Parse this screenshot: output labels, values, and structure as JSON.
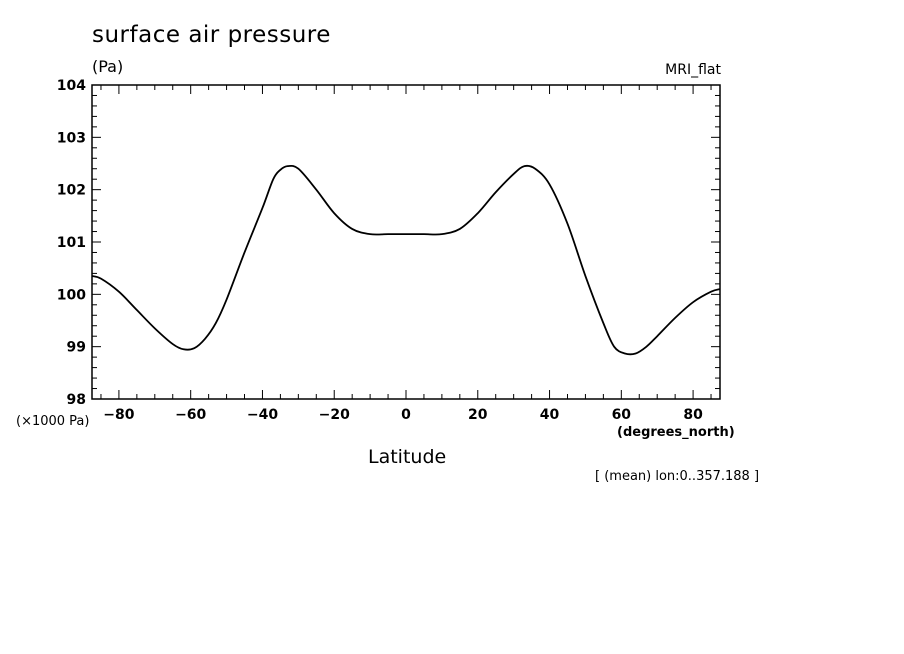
{
  "chart_data": {
    "type": "line",
    "title": "surface air pressure",
    "ylabel": "(Pa)",
    "y_multiplier_label": "(×1000 Pa)",
    "xlabel": "Latitude",
    "x_units_label": "(degrees_north)",
    "model_label": "MRI_flat",
    "note": "[ (mean) lon:0..357.188 ]",
    "xlim": [
      -87.5,
      87.5
    ],
    "ylim": [
      98,
      104
    ],
    "x_ticks": [
      -80,
      -60,
      -40,
      -20,
      0,
      20,
      40,
      60,
      80
    ],
    "x_tick_labels": [
      "−80",
      "−60",
      "−40",
      "−20",
      "0",
      "20",
      "40",
      "60",
      "80"
    ],
    "y_ticks": [
      98,
      99,
      100,
      101,
      102,
      103,
      104
    ],
    "y_tick_labels": [
      "98",
      "99",
      "100",
      "101",
      "102",
      "103",
      "104"
    ],
    "grid": false,
    "series": [
      {
        "color": "#000000",
        "x": [
          -87.5,
          -85,
          -80,
          -75,
          -70,
          -65,
          -62,
          -59,
          -56,
          -53,
          -50,
          -45,
          -40,
          -37,
          -35,
          -33,
          -30,
          -25,
          -20,
          -15,
          -10,
          -5,
          0,
          5,
          10,
          15,
          20,
          25,
          30,
          33,
          36,
          40,
          45,
          50,
          55,
          58,
          61,
          64,
          67,
          70,
          75,
          80,
          85,
          87.5
        ],
        "y": [
          100.35,
          100.3,
          100.05,
          99.7,
          99.35,
          99.05,
          98.95,
          98.97,
          99.15,
          99.45,
          99.9,
          100.8,
          101.65,
          102.2,
          102.38,
          102.45,
          102.4,
          102.0,
          101.55,
          101.25,
          101.15,
          101.15,
          101.15,
          101.15,
          101.15,
          101.25,
          101.55,
          101.95,
          102.3,
          102.45,
          102.4,
          102.1,
          101.35,
          100.35,
          99.45,
          99.0,
          98.87,
          98.87,
          99.0,
          99.2,
          99.55,
          99.85,
          100.05,
          100.1
        ]
      }
    ]
  }
}
